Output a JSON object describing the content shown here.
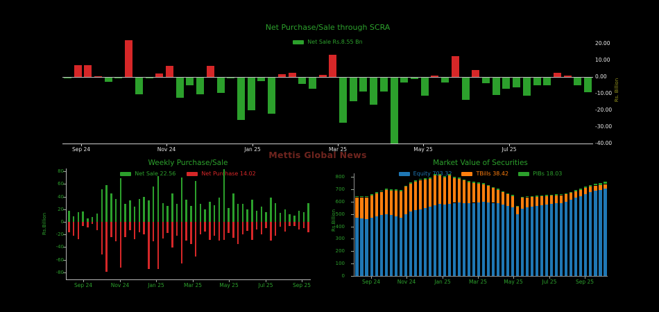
{
  "watermark": "Mettis Global News",
  "colors": {
    "background": "#000000",
    "green": "#2ca02c",
    "red": "#d62728",
    "blue": "#1f77b4",
    "orange": "#ff7f0e",
    "top_axis_text": "#e6e6e6",
    "green_axis_text": "#2ca02c",
    "top_ylabel_text": "#96951f",
    "watermark_text": "#6e241e"
  },
  "chart_data": [
    {
      "type": "bar",
      "title": "Net Purchase/Sale through SCRA",
      "legend": [
        {
          "label": "Net Sale Rs.8.55 Bn",
          "color": "#2ca02c"
        }
      ],
      "ylabel": "Rs. Billion",
      "ylim": [
        -40,
        20
      ],
      "yticks": [
        20,
        10,
        0,
        -10,
        -20,
        -30,
        -40
      ],
      "ytick_labels": [
        "20.00",
        "10.00",
        "0.00",
        "-10.00",
        "-20.00",
        "-30.00",
        "-40.00"
      ],
      "xtick_labels": [
        "Sep 24",
        "Nov 24",
        "Jan 25",
        "Mar 25",
        "May 25",
        "Jul 25"
      ],
      "positive_color": "#d62728",
      "negative_color": "#2ca02c",
      "grid": false,
      "legend_position": "top-center",
      "values": [
        -0.5,
        7,
        7,
        0.3,
        -2.5,
        -0.3,
        22,
        -10,
        -0.6,
        2,
        6.6,
        -12,
        -4.6,
        -10,
        6.6,
        -9,
        -0.4,
        -25.3,
        -19.6,
        -2,
        -21.5,
        1.5,
        2.6,
        -3.9,
        -6.7,
        1.1,
        13.3,
        -27,
        -14.3,
        -8.2,
        -16.3,
        -8.2,
        -39.4,
        -3,
        -1,
        -11,
        0.9,
        -2.9,
        12.6,
        -13.2,
        4.3,
        -3.4,
        -10.3,
        -6.7,
        -6,
        -11,
        -4.6,
        -4.6,
        2.6,
        0.9,
        -4.6,
        -8.9
      ]
    },
    {
      "type": "bar",
      "title": "Weekly Purchase/Sale",
      "legend": [
        {
          "label": "Net Sale 22.56",
          "color": "#2ca02c"
        },
        {
          "label": "Net Purchase 14.02",
          "color": "#d62728"
        }
      ],
      "ylabel": "Rs.Billion",
      "ylim": [
        -80,
        80
      ],
      "yticks": [
        80,
        60,
        40,
        20,
        0,
        -20,
        -40,
        -60,
        -80
      ],
      "xtick_labels": [
        "Sep 24",
        "Nov 24",
        "Jan 25",
        "Mar 25",
        "May 25",
        "Jul 25",
        "Sep 25"
      ],
      "grid": false,
      "legend_position": "top-center",
      "series": [
        {
          "name": "Net Sale",
          "color": "#2ca02c",
          "values": [
            18,
            9,
            15,
            17,
            6,
            8,
            13,
            52,
            58,
            45,
            36,
            69,
            28,
            34,
            24,
            36,
            39,
            34,
            56,
            72,
            30,
            25,
            45,
            28,
            70,
            35,
            25,
            65,
            28,
            20,
            32,
            26,
            38,
            83,
            22,
            45,
            28,
            28,
            20,
            35,
            18,
            24,
            15,
            38,
            30,
            14,
            20,
            12,
            10,
            18,
            15,
            30
          ]
        },
        {
          "name": "Net Purchase",
          "color": "#d62728",
          "values": [
            -16,
            -22,
            -27,
            -7,
            -9,
            -3,
            -13,
            -51,
            -79,
            -24,
            -31,
            -72,
            -24,
            -13,
            -27,
            -16,
            -20,
            -74,
            -31,
            -75,
            -26,
            -18,
            -40,
            -22,
            -66,
            -30,
            -35,
            -55,
            -20,
            -15,
            -28,
            -22,
            -30,
            -28,
            -18,
            -25,
            -35,
            -20,
            -14,
            -28,
            -12,
            -20,
            -10,
            -30,
            -22,
            -8,
            -15,
            -7,
            -6,
            -12,
            -10,
            -16
          ]
        }
      ]
    },
    {
      "type": "stacked-bar",
      "title": "Market Value of Securities",
      "legend": [
        {
          "label": "Equity 703.32",
          "color": "#1f77b4"
        },
        {
          "label": "TBills 38.42",
          "color": "#ff7f0e"
        },
        {
          "label": "PIBs 18.03",
          "color": "#2ca02c"
        }
      ],
      "ylabel": "Rs.Billion",
      "ylim": [
        0,
        800
      ],
      "yticks": [
        800,
        700,
        600,
        500,
        400,
        300,
        200,
        100,
        0
      ],
      "xtick_labels": [
        "Sep 24",
        "Nov 24",
        "Jan 25",
        "Mar 25",
        "May 25",
        "Jul 25",
        "Sep 25"
      ],
      "grid": false,
      "legend_position": "top-center",
      "series": [
        {
          "name": "Equity",
          "color": "#1f77b4",
          "values": [
            470,
            465,
            460,
            470,
            480,
            490,
            500,
            490,
            480,
            470,
            500,
            520,
            530,
            540,
            550,
            560,
            570,
            580,
            575,
            580,
            590,
            595,
            590,
            585,
            590,
            595,
            600,
            595,
            590,
            585,
            575,
            565,
            555,
            500,
            545,
            555,
            560,
            565,
            570,
            575,
            580,
            585,
            590,
            600,
            615,
            630,
            645,
            660,
            675,
            688,
            695,
            703
          ]
        },
        {
          "name": "TBills",
          "color": "#ff7f0e",
          "values": [
            165,
            170,
            175,
            180,
            185,
            190,
            195,
            200,
            210,
            215,
            220,
            225,
            230,
            235,
            230,
            225,
            240,
            230,
            220,
            230,
            200,
            190,
            180,
            170,
            160,
            150,
            140,
            130,
            120,
            110,
            100,
            95,
            90,
            60,
            85,
            80,
            78,
            75,
            72,
            70,
            68,
            65,
            62,
            58,
            55,
            52,
            50,
            48,
            45,
            42,
            40,
            38
          ]
        },
        {
          "name": "PIBs",
          "color": "#2ca02c",
          "values": [
            10,
            10,
            10,
            10,
            10,
            10,
            10,
            10,
            10,
            10,
            10,
            10,
            10,
            10,
            10,
            10,
            10,
            10,
            10,
            10,
            10,
            10,
            10,
            10,
            10,
            10,
            8,
            8,
            8,
            8,
            8,
            8,
            8,
            6,
            8,
            8,
            8,
            8,
            8,
            8,
            8,
            8,
            8,
            8,
            10,
            11,
            12,
            13,
            14,
            15,
            16,
            18
          ]
        }
      ]
    }
  ]
}
